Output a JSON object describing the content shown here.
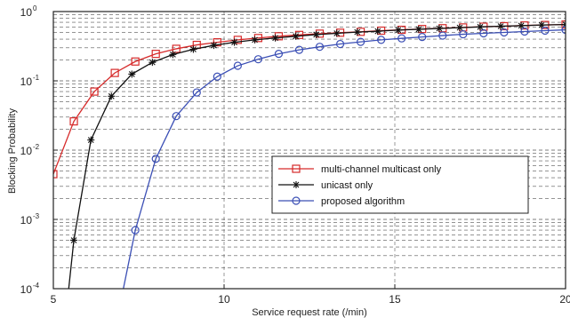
{
  "chart_data": {
    "type": "line",
    "title": "",
    "xlabel": "Service request rate (/min)",
    "ylabel": "Blocking Probability",
    "xlim": [
      5,
      20
    ],
    "ylim": [
      0.0001,
      1
    ],
    "yscale": "log",
    "grid": true,
    "legend_position": "center-right",
    "x_ticks": [
      5,
      10,
      15,
      20
    ],
    "y_ticks": [
      {
        "base": "10",
        "exp": "-4"
      },
      {
        "base": "10",
        "exp": "-3"
      },
      {
        "base": "10",
        "exp": "-2"
      },
      {
        "base": "10",
        "exp": "-1"
      },
      {
        "base": "10",
        "exp": "0"
      }
    ],
    "series": [
      {
        "name": "multi-channel multicast only",
        "color": "#d62a2a",
        "marker": "square",
        "points": [
          [
            5,
            0.0045
          ],
          [
            5.6,
            0.026
          ],
          [
            6.2,
            0.07
          ],
          [
            6.8,
            0.13
          ],
          [
            7.4,
            0.19
          ],
          [
            8.0,
            0.245
          ],
          [
            8.6,
            0.29
          ],
          [
            9.2,
            0.33
          ],
          [
            9.8,
            0.36
          ],
          [
            10.4,
            0.39
          ],
          [
            11.0,
            0.415
          ],
          [
            11.6,
            0.44
          ],
          [
            12.2,
            0.46
          ],
          [
            12.8,
            0.48
          ],
          [
            13.4,
            0.495
          ],
          [
            14.0,
            0.51
          ],
          [
            14.6,
            0.53
          ],
          [
            15.2,
            0.545
          ],
          [
            15.8,
            0.56
          ],
          [
            16.4,
            0.575
          ],
          [
            17.0,
            0.59
          ],
          [
            17.6,
            0.605
          ],
          [
            18.2,
            0.615
          ],
          [
            18.8,
            0.63
          ],
          [
            19.4,
            0.64
          ],
          [
            20.0,
            0.65
          ]
        ]
      },
      {
        "name": "unicast only",
        "color": "#111111",
        "marker": "star",
        "points": [
          [
            5.45,
            0.0001
          ],
          [
            5.6,
            0.0005
          ],
          [
            6.1,
            0.014
          ],
          [
            6.7,
            0.06
          ],
          [
            7.3,
            0.125
          ],
          [
            7.9,
            0.185
          ],
          [
            8.5,
            0.24
          ],
          [
            9.1,
            0.285
          ],
          [
            9.7,
            0.325
          ],
          [
            10.3,
            0.36
          ],
          [
            10.9,
            0.39
          ],
          [
            11.5,
            0.415
          ],
          [
            12.1,
            0.44
          ],
          [
            12.7,
            0.465
          ],
          [
            13.3,
            0.485
          ],
          [
            13.9,
            0.505
          ],
          [
            14.5,
            0.52
          ],
          [
            15.1,
            0.54
          ],
          [
            15.7,
            0.555
          ],
          [
            16.3,
            0.57
          ],
          [
            16.9,
            0.585
          ],
          [
            17.5,
            0.6
          ],
          [
            18.1,
            0.615
          ],
          [
            18.7,
            0.625
          ],
          [
            19.3,
            0.64
          ],
          [
            20.0,
            0.65
          ]
        ]
      },
      {
        "name": "proposed algorithm",
        "color": "#3b4fb5",
        "marker": "circle",
        "points": [
          [
            7.05,
            0.0001
          ],
          [
            7.4,
            0.0007
          ],
          [
            8.0,
            0.0075
          ],
          [
            8.6,
            0.031
          ],
          [
            9.2,
            0.068
          ],
          [
            9.8,
            0.115
          ],
          [
            10.4,
            0.165
          ],
          [
            11.0,
            0.205
          ],
          [
            11.6,
            0.245
          ],
          [
            12.2,
            0.28
          ],
          [
            12.8,
            0.31
          ],
          [
            13.4,
            0.34
          ],
          [
            14.0,
            0.365
          ],
          [
            14.6,
            0.39
          ],
          [
            15.2,
            0.41
          ],
          [
            15.8,
            0.43
          ],
          [
            16.4,
            0.45
          ],
          [
            17.0,
            0.47
          ],
          [
            17.6,
            0.485
          ],
          [
            18.2,
            0.5
          ],
          [
            18.8,
            0.515
          ],
          [
            19.4,
            0.53
          ],
          [
            20.0,
            0.545
          ]
        ]
      }
    ]
  }
}
